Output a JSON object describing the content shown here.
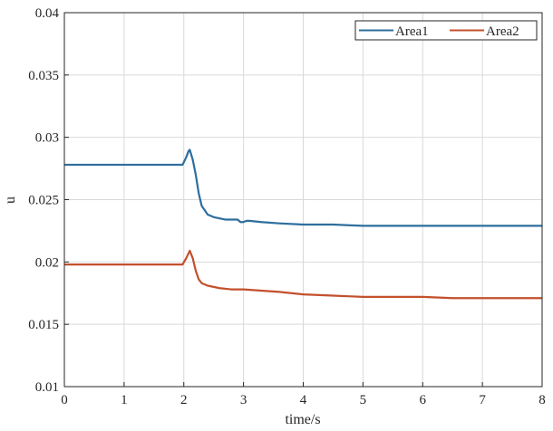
{
  "chart_data": {
    "type": "line",
    "title": "",
    "xlabel": "time/s",
    "ylabel": "u",
    "xlim": [
      0,
      8
    ],
    "ylim": [
      0.01,
      0.04
    ],
    "xticks": [
      "0",
      "1",
      "2",
      "3",
      "4",
      "5",
      "6",
      "7",
      "8"
    ],
    "yticks": [
      "0.01",
      "0.015",
      "0.02",
      "0.025",
      "0.03",
      "0.035",
      "0.04"
    ],
    "grid": true,
    "legend_position": "top-right",
    "series": [
      {
        "name": "Area1",
        "color": "#2e6e9e",
        "x": [
          0,
          1.98,
          2.04,
          2.08,
          2.1,
          2.15,
          2.2,
          2.25,
          2.3,
          2.4,
          2.5,
          2.6,
          2.7,
          2.8,
          2.9,
          2.95,
          3.0,
          3.05,
          3.1,
          3.3,
          3.6,
          4.0,
          4.5,
          5.0,
          5.5,
          6.0,
          6.5,
          7.0,
          7.5,
          8.0
        ],
        "y": [
          0.0278,
          0.0278,
          0.0284,
          0.0289,
          0.029,
          0.0282,
          0.027,
          0.0255,
          0.0245,
          0.0238,
          0.0236,
          0.0235,
          0.0234,
          0.0234,
          0.0234,
          0.0232,
          0.0232,
          0.0233,
          0.0233,
          0.0232,
          0.0231,
          0.023,
          0.023,
          0.0229,
          0.0229,
          0.0229,
          0.0229,
          0.0229,
          0.0229,
          0.0229
        ]
      },
      {
        "name": "Area2",
        "color": "#c3502c",
        "x": [
          0,
          1.98,
          2.04,
          2.08,
          2.1,
          2.15,
          2.2,
          2.25,
          2.3,
          2.4,
          2.5,
          2.6,
          2.8,
          3.0,
          3.3,
          3.6,
          4.0,
          4.5,
          5.0,
          5.5,
          6.0,
          6.5,
          7.0,
          7.5,
          8.0
        ],
        "y": [
          0.0198,
          0.0198,
          0.0203,
          0.0207,
          0.0209,
          0.0203,
          0.0193,
          0.0186,
          0.0183,
          0.0181,
          0.018,
          0.0179,
          0.0178,
          0.0178,
          0.0177,
          0.0176,
          0.0174,
          0.0173,
          0.0172,
          0.0172,
          0.0172,
          0.0171,
          0.0171,
          0.0171,
          0.0171
        ]
      }
    ]
  }
}
